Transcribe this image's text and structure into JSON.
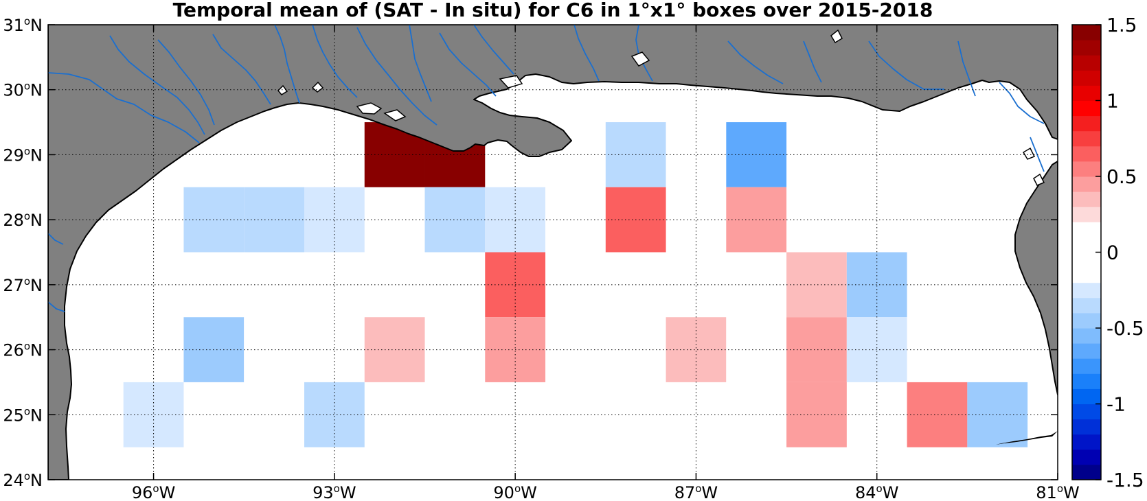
{
  "title": "Temporal mean of (SAT - In situ) for C6 in 1°x1° boxes over 2015-2018",
  "chart_data": {
    "type": "heatmap",
    "title": "Temporal mean of (SAT - In situ) for C6 in 1°x1° boxes over 2015-2018",
    "x_ticks": [
      {
        "lon": -96,
        "num": "96",
        "hemi": "W"
      },
      {
        "lon": -93,
        "num": "93",
        "hemi": "W"
      },
      {
        "lon": -90,
        "num": "90",
        "hemi": "W"
      },
      {
        "lon": -87,
        "num": "87",
        "hemi": "W"
      },
      {
        "lon": -84,
        "num": "84",
        "hemi": "W"
      },
      {
        "lon": -81,
        "num": "81",
        "hemi": "W"
      }
    ],
    "y_ticks": [
      {
        "lat": 31,
        "num": "31",
        "hemi": "N"
      },
      {
        "lat": 30,
        "num": "30",
        "hemi": "N"
      },
      {
        "lat": 29,
        "num": "29",
        "hemi": "N"
      },
      {
        "lat": 28,
        "num": "28",
        "hemi": "N"
      },
      {
        "lat": 27,
        "num": "27",
        "hemi": "N"
      },
      {
        "lat": 26,
        "num": "26",
        "hemi": "N"
      },
      {
        "lat": 25,
        "num": "25",
        "hemi": "N"
      },
      {
        "lat": 24,
        "num": "24",
        "hemi": "N"
      }
    ],
    "xlim": [
      -97.75,
      -81
    ],
    "ylim": [
      24,
      31
    ],
    "grid": true,
    "colorbar": {
      "range": [
        -1.5,
        1.5
      ],
      "levels": 30,
      "ticks": [
        "1.5",
        "1",
        "0.5",
        "0",
        "-0.5",
        "-1",
        "-1.5"
      ],
      "tick_values": [
        1.5,
        1,
        0.5,
        0,
        -0.5,
        -1,
        -1.5
      ],
      "colors": [
        "#00008b",
        "#0000b2",
        "#0015c8",
        "#0030d8",
        "#004ae6",
        "#0066f2",
        "#1a80fa",
        "#3a95fc",
        "#5ea9fd",
        "#7fbcfd",
        "#9ccbfd",
        "#b9dafe",
        "#d5e8ff",
        "#ffffff",
        "#ffffff",
        "#ffffff",
        "#ffffff",
        "#fddada",
        "#fcbcbc",
        "#fc9e9e",
        "#fc7f7f",
        "#fb5f5f",
        "#f83f3f",
        "#f41f1f",
        "#ff0000",
        "#e80000",
        "#d00000",
        "#b80000",
        "#a00000",
        "#880000"
      ]
    },
    "cells": [
      {
        "lon": -92,
        "lat": 29,
        "value": 1.5
      },
      {
        "lon": -91,
        "lat": 29,
        "value": 1.5
      },
      {
        "lon": -89,
        "lat": 29,
        "value": 0.15
      },
      {
        "lon": -88,
        "lat": 29,
        "value": -0.35
      },
      {
        "lon": -87,
        "lat": 29,
        "value": 0.15
      },
      {
        "lon": -86,
        "lat": 29,
        "value": -0.65
      },
      {
        "lon": -95,
        "lat": 28,
        "value": -0.35
      },
      {
        "lon": -94,
        "lat": 28,
        "value": -0.35
      },
      {
        "lon": -93,
        "lat": 28,
        "value": -0.25
      },
      {
        "lon": -91,
        "lat": 28,
        "value": -0.35
      },
      {
        "lon": -90,
        "lat": 28,
        "value": -0.25
      },
      {
        "lon": -89,
        "lat": 28,
        "value": -0.15
      },
      {
        "lon": -88,
        "lat": 28,
        "value": 0.65
      },
      {
        "lon": -86,
        "lat": 28,
        "value": 0.45
      },
      {
        "lon": -95,
        "lat": 27,
        "value": -0.15
      },
      {
        "lon": -93,
        "lat": 27,
        "value": -0.15
      },
      {
        "lon": -92,
        "lat": 27,
        "value": -0.15
      },
      {
        "lon": -91,
        "lat": 27,
        "value": 0.15
      },
      {
        "lon": -90,
        "lat": 27,
        "value": 0.65
      },
      {
        "lon": -85,
        "lat": 27,
        "value": 0.3
      },
      {
        "lon": -84,
        "lat": 27,
        "value": -0.45
      },
      {
        "lon": -95,
        "lat": 26,
        "value": -0.5
      },
      {
        "lon": -94,
        "lat": 26,
        "value": -0.15
      },
      {
        "lon": -93,
        "lat": 26,
        "value": -0.15
      },
      {
        "lon": -92,
        "lat": 26,
        "value": 0.3
      },
      {
        "lon": -90,
        "lat": 26,
        "value": 0.45
      },
      {
        "lon": -87,
        "lat": 26,
        "value": 0.3
      },
      {
        "lon": -86,
        "lat": 26,
        "value": 0.15
      },
      {
        "lon": -85,
        "lat": 26,
        "value": 0.45
      },
      {
        "lon": -84,
        "lat": 26,
        "value": -0.25
      },
      {
        "lon": -96,
        "lat": 25,
        "value": -0.25
      },
      {
        "lon": -93,
        "lat": 25,
        "value": -0.35
      },
      {
        "lon": -89,
        "lat": 25,
        "value": 0.15
      },
      {
        "lon": -86,
        "lat": 25,
        "value": 0.15
      },
      {
        "lon": -85,
        "lat": 25,
        "value": 0.45
      },
      {
        "lon": -83,
        "lat": 25,
        "value": 0.5
      },
      {
        "lon": -82,
        "lat": 25,
        "value": -0.5
      }
    ]
  },
  "colors": {
    "land": "#808080",
    "rivers": "#1a6fd0",
    "coast": "#000000",
    "ocean": "#ffffff"
  }
}
